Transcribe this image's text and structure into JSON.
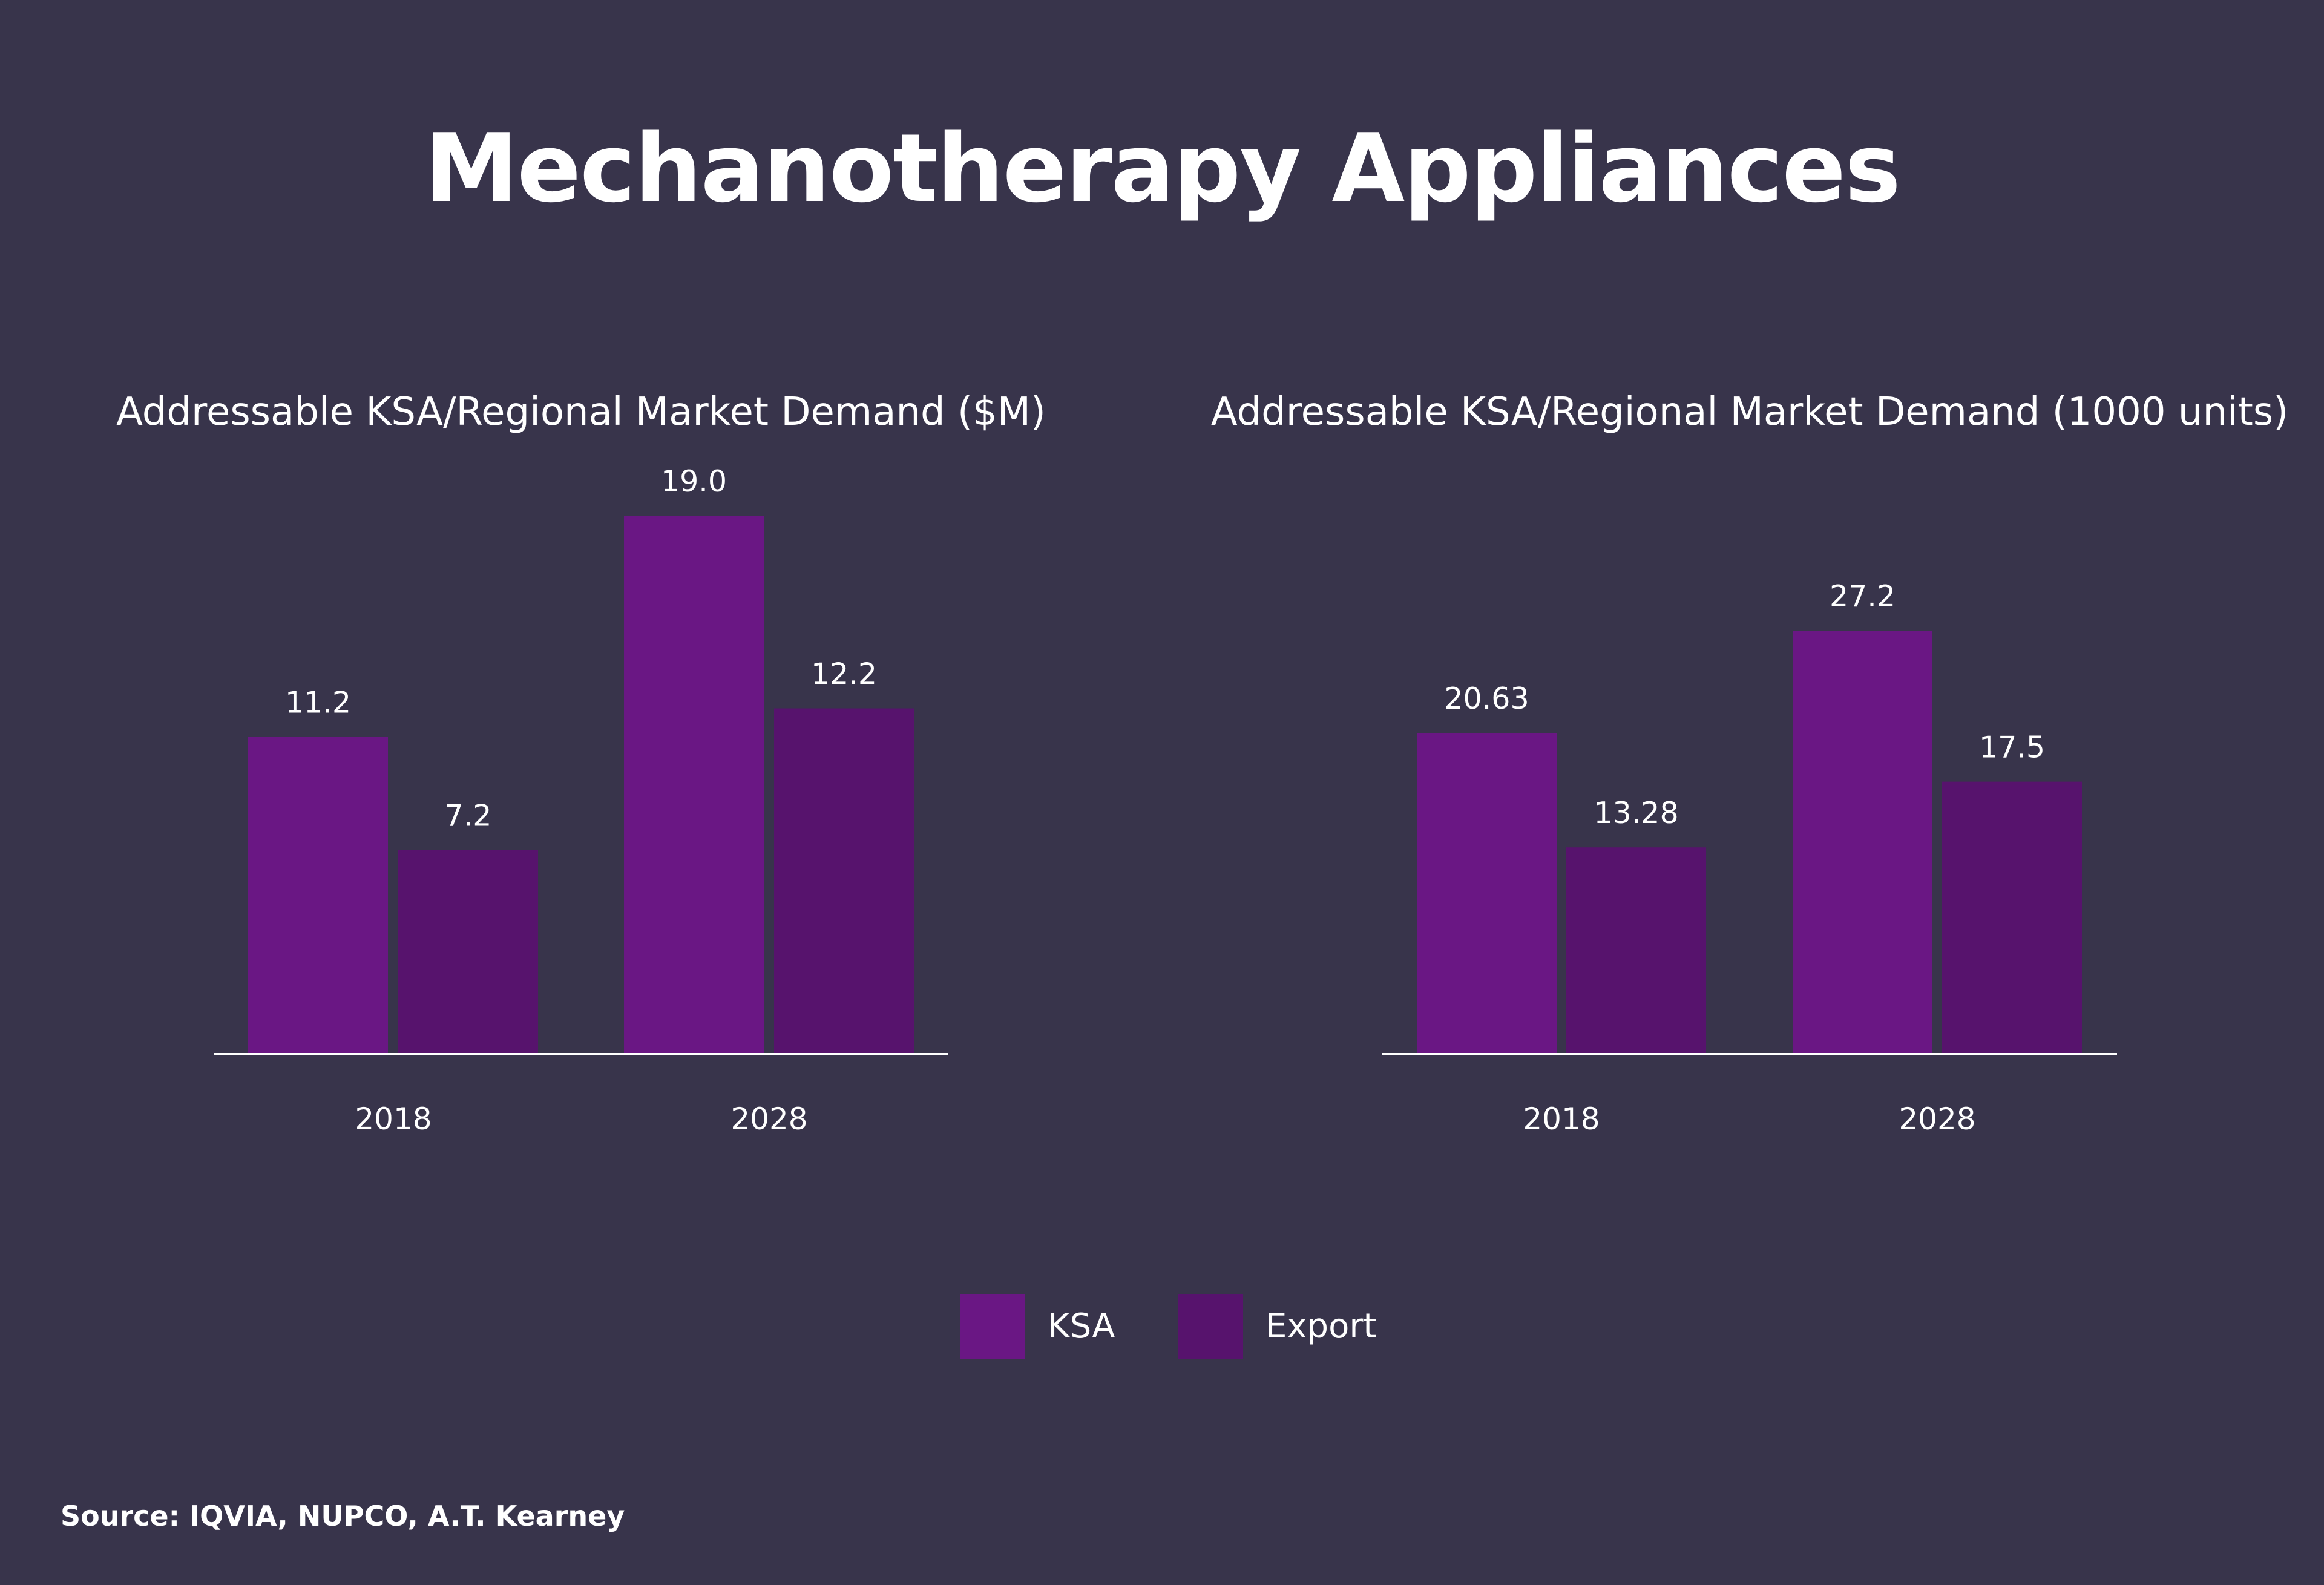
{
  "title": "Mechanotherapy Appliances",
  "source": "Source: IQVIA, NUPCO, A.T. Kearney",
  "colors": {
    "background": "#38344b",
    "ksa": "#6a1784",
    "export": "#57136d",
    "axis": "#ffffff",
    "text": "#ffffff"
  },
  "legend": [
    {
      "name": "KSA",
      "color": "#6a1784"
    },
    {
      "name": "Export",
      "color": "#57136d"
    }
  ],
  "chart_data": [
    {
      "type": "bar",
      "title": "Addressable KSA/Regional Market Demand ($M)",
      "categories": [
        "2018",
        "2028"
      ],
      "series": [
        {
          "name": "KSA",
          "values": [
            11.2,
            19.0
          ],
          "labels": [
            "11.2",
            "19.0"
          ]
        },
        {
          "name": "Export",
          "values": [
            7.2,
            12.2
          ],
          "labels": [
            "7.2",
            "12.2"
          ]
        }
      ],
      "xlabel": "",
      "ylabel": "",
      "ylim": [
        0,
        19.0
      ],
      "grid": false,
      "legend_position": "bottom"
    },
    {
      "type": "bar",
      "title": "Addressable KSA/Regional Market Demand (1000 units)",
      "categories": [
        "2018",
        "2028"
      ],
      "series": [
        {
          "name": "KSA",
          "values": [
            20.63,
            27.2
          ],
          "labels": [
            "20.63",
            "27.2"
          ]
        },
        {
          "name": "Export",
          "values": [
            13.28,
            17.5
          ],
          "labels": [
            "13.28",
            "17.5"
          ]
        }
      ],
      "xlabel": "",
      "ylabel": "",
      "ylim": [
        0,
        30.0
      ],
      "grid": false,
      "legend_position": "bottom"
    }
  ]
}
